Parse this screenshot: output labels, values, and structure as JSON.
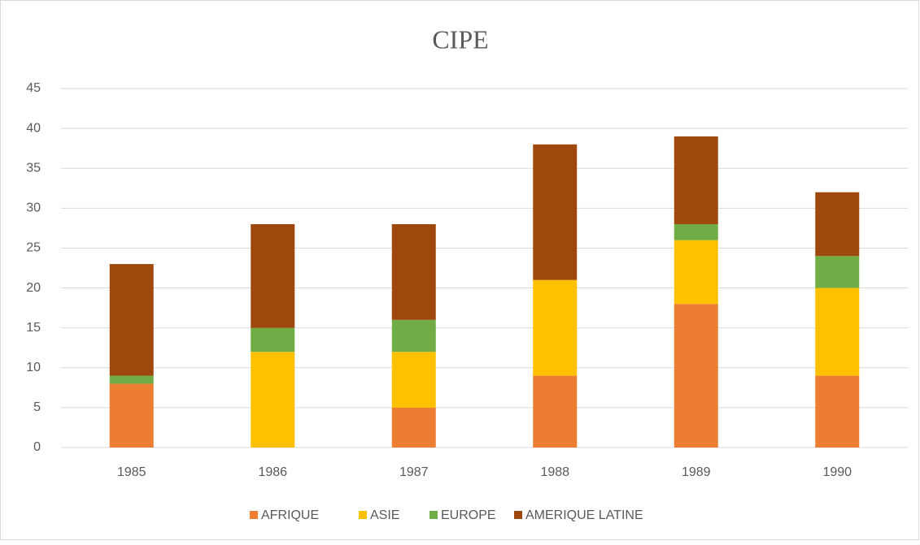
{
  "chart_data": {
    "type": "stacked_bar",
    "title": "CIPE",
    "categories": [
      "1985",
      "1986",
      "1987",
      "1988",
      "1989",
      "1990"
    ],
    "series": [
      {
        "name": "AFRIQUE",
        "color": "#ed7d31",
        "values": [
          8,
          0,
          5,
          9,
          18,
          9
        ]
      },
      {
        "name": "ASIE",
        "color": "#ffc000",
        "values": [
          0,
          12,
          7,
          12,
          8,
          11
        ]
      },
      {
        "name": "EUROPE",
        "color": "#70ad47",
        "values": [
          1,
          3,
          4,
          0,
          2,
          4
        ]
      },
      {
        "name": "AMERIQUE LATINE",
        "color": "#9e480e",
        "values": [
          14,
          13,
          12,
          17,
          11,
          8
        ]
      }
    ],
    "ylim": [
      0,
      45
    ],
    "yticks": [
      0,
      5,
      10,
      15,
      20,
      25,
      30,
      35,
      40,
      45
    ],
    "grid": true,
    "legend": "bottom"
  }
}
